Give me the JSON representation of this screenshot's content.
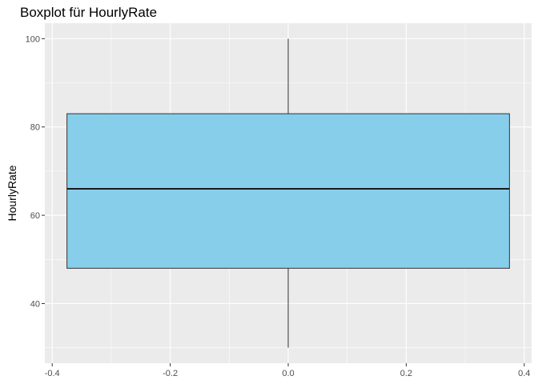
{
  "chart_data": {
    "type": "boxplot",
    "title": "Boxplot für HourlyRate",
    "xlabel": "",
    "ylabel": "HourlyRate",
    "x_ticks": [
      -0.4,
      -0.2,
      0.0,
      0.2,
      0.4
    ],
    "x_tick_labels": [
      "-0.4",
      "-0.2",
      "0.0",
      "0.2",
      "0.4"
    ],
    "y_ticks": [
      40,
      60,
      80,
      100
    ],
    "y_tick_labels": [
      "40",
      "60",
      "80",
      "100"
    ],
    "xlim": [
      -0.4125,
      0.4125
    ],
    "ylim": [
      26.5,
      103.5
    ],
    "grid": true,
    "box": {
      "x_center": 0.0,
      "x_min": -0.375,
      "x_max": 0.375,
      "whisker_low": 30,
      "q1": 48,
      "median": 66,
      "q3": 83,
      "whisker_high": 100
    },
    "colors": {
      "panel_background": "#ebebeb",
      "grid_major": "#ffffff",
      "box_fill": "#87ceeb",
      "box_outline": "#333333",
      "median_line": "#1a1a1a",
      "tick_text": "#4d4d4d"
    }
  }
}
